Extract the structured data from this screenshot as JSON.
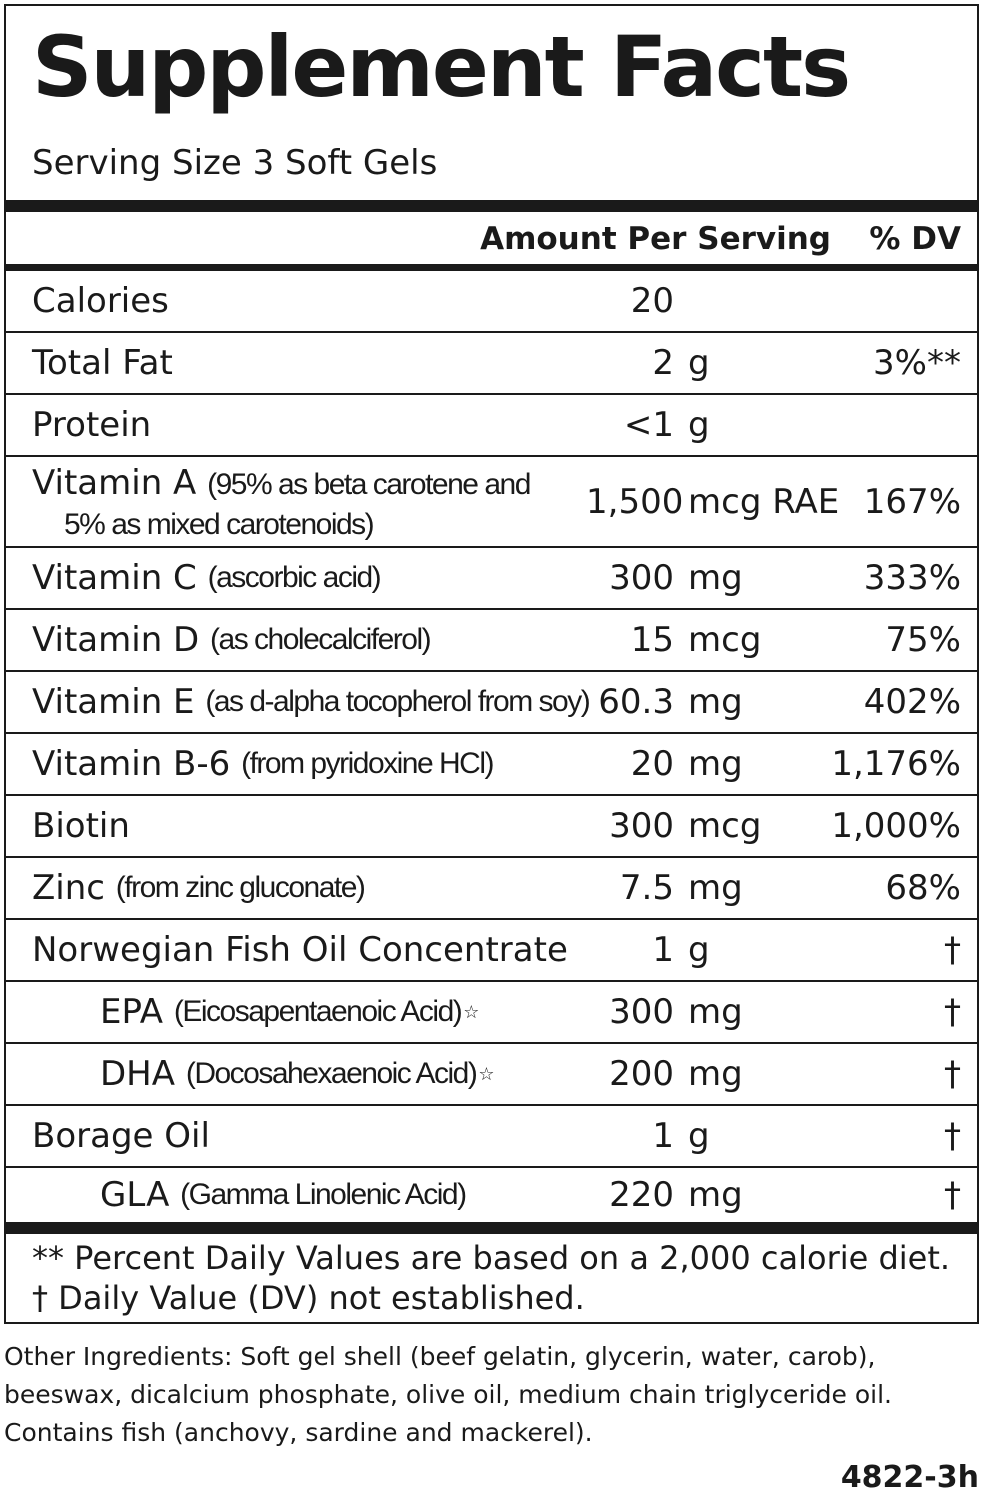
{
  "label": {
    "title": "Supplement Facts",
    "serving_size": "Serving Size 3 Soft Gels",
    "header_amount": "Amount Per Serving",
    "header_dv": "% DV"
  },
  "nutrients": [
    {
      "name": "Calories",
      "detail": "",
      "num": "20",
      "unit": "",
      "dv": ""
    },
    {
      "name": "Total Fat",
      "detail": "",
      "num": "2",
      "unit": "g",
      "dv": "3%**"
    },
    {
      "name": "Protein",
      "detail": "",
      "num": "<1",
      "unit": "g",
      "dv": ""
    },
    {
      "name": "Vitamin A",
      "detail": "(95% as beta carotene and",
      "detail2": "5% as mixed carotenoids)",
      "num": "1,500",
      "unit": "mcg RAE",
      "dv": "167%"
    },
    {
      "name": "Vitamin C",
      "detail": "(ascorbic acid)",
      "num": "300",
      "unit": "mg",
      "dv": "333%"
    },
    {
      "name": "Vitamin D",
      "detail": "(as cholecalciferol)",
      "num": "15",
      "unit": "mcg",
      "dv": "75%"
    },
    {
      "name": "Vitamin E",
      "detail": "(as d-alpha tocopherol from soy)",
      "num": "60.3",
      "unit": "mg",
      "dv": "402%"
    },
    {
      "name": "Vitamin B-6",
      "detail": "(from pyridoxine HCl)",
      "num": "20",
      "unit": "mg",
      "dv": "1,176%"
    },
    {
      "name": "Biotin",
      "detail": "",
      "num": "300",
      "unit": "mcg",
      "dv": "1,000%"
    },
    {
      "name": "Zinc",
      "detail": "(from zinc gluconate)",
      "num": "7.5",
      "unit": "mg",
      "dv": "68%"
    },
    {
      "name": "Norwegian Fish Oil Concentrate",
      "detail": "",
      "num": "1",
      "unit": "g",
      "dv": "†"
    },
    {
      "name": "EPA",
      "detail": "(Eicosapentaenoic Acid)",
      "star": "☆",
      "num": "300",
      "unit": "mg",
      "dv": "†"
    },
    {
      "name": "DHA",
      "detail": "(Docosahexaenoic Acid)",
      "star": "☆",
      "num": "200",
      "unit": "mg",
      "dv": "†"
    },
    {
      "name": "Borage Oil",
      "detail": "",
      "num": "1",
      "unit": "g",
      "dv": "†"
    },
    {
      "name": "GLA",
      "detail": "(Gamma Linolenic Acid)",
      "num": "220",
      "unit": "mg",
      "dv": "†"
    }
  ],
  "footnotes": {
    "line1": "** Percent Daily Values are based on a 2,000 calorie diet.",
    "line2": "† Daily Value (DV) not established."
  },
  "other_ingredients": {
    "line1": "Other Ingredients: Soft gel shell (beef gelatin, glycerin, water, carob),",
    "line2": "beeswax, dicalcium phosphate, olive oil, medium chain triglyceride oil.",
    "line3": "Contains fish (anchovy, sardine and mackerel)."
  },
  "product_code": "4822-3h"
}
